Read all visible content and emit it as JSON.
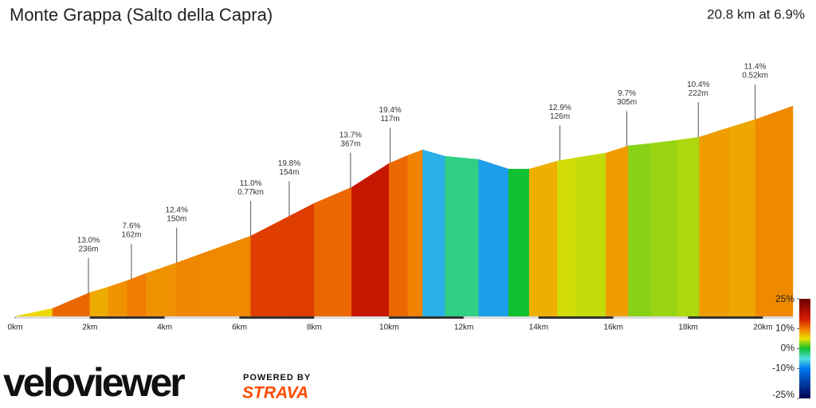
{
  "chart_data": {
    "type": "gradient_profile",
    "title": "Monte Grappa (Salto della Capra)",
    "summary": "20.8 km at 6.9%",
    "x_edges": [
      0,
      1,
      2,
      2.5,
      3,
      3.5,
      4.3,
      5,
      6.3,
      7.3,
      8.0,
      8.5,
      9.0,
      10.0,
      10.5,
      10.9,
      11.5,
      12.4,
      13.2,
      13.75,
      14.5,
      15.0,
      15.8,
      16.4,
      17.0,
      17.7,
      18.3,
      19.1,
      19.8,
      20.8
    ],
    "grades": [
      5.4,
      10.9,
      7.6,
      8.7,
      9.8,
      8.8,
      9.3,
      9.2,
      13.1,
      13.2,
      10.9,
      10.9,
      16.3,
      10.9,
      9.5,
      -7.3,
      -2.4,
      -8.2,
      0,
      7.3,
      4.4,
      4.1,
      8.2,
      2.7,
      3.1,
      3.6,
      8.2,
      7.8,
      9.2
    ],
    "xlim": [
      0,
      20.8
    ],
    "xticks": [
      {
        "value": 0,
        "label": "0km"
      },
      {
        "value": 2,
        "label": "2km"
      },
      {
        "value": 4,
        "label": "4km"
      },
      {
        "value": 6,
        "label": "6km"
      },
      {
        "value": 8,
        "label": "8km"
      },
      {
        "value": 10,
        "label": "10km"
      },
      {
        "value": 12,
        "label": "12km"
      },
      {
        "value": 14,
        "label": "14km"
      },
      {
        "value": 16,
        "label": "16km"
      },
      {
        "value": 18,
        "label": "18km"
      },
      {
        "value": 20,
        "label": "20km"
      }
    ],
    "annotations": [
      {
        "x": 1.96,
        "grade": "13.0%",
        "length": "236m"
      },
      {
        "x": 3.11,
        "grade": "7.6%",
        "length": "162m"
      },
      {
        "x": 4.32,
        "grade": "12.4%",
        "length": "150m"
      },
      {
        "x": 6.3,
        "grade": "11.0%",
        "length": "0.77km"
      },
      {
        "x": 7.33,
        "grade": "19.8%",
        "length": "154m"
      },
      {
        "x": 8.97,
        "grade": "13.7%",
        "length": "367m"
      },
      {
        "x": 10.03,
        "grade": "19.4%",
        "length": "117m"
      },
      {
        "x": 14.57,
        "grade": "12.9%",
        "length": "126m"
      },
      {
        "x": 16.36,
        "grade": "9.7%",
        "length": "305m"
      },
      {
        "x": 18.27,
        "grade": "10.4%",
        "length": "222m"
      },
      {
        "x": 19.79,
        "grade": "11.4%",
        "length": "0.52km"
      }
    ],
    "colorscale": [
      {
        "value": 25,
        "color": "#6b0000"
      },
      {
        "value": 15,
        "color": "#d41a00"
      },
      {
        "value": 10,
        "color": "#f07800"
      },
      {
        "value": 5,
        "color": "#ece000"
      },
      {
        "value": 0,
        "color": "#10c030"
      },
      {
        "value": -5,
        "color": "#50e0e0"
      },
      {
        "value": -10,
        "color": "#0078f0"
      },
      {
        "value": -25,
        "color": "#000050"
      }
    ],
    "colorbar_lim": [
      -25,
      25
    ],
    "colorbar_ticks": [
      {
        "value": 25,
        "label": "25%"
      },
      {
        "value": 10,
        "label": "10%"
      },
      {
        "value": 0,
        "label": "0%"
      },
      {
        "value": -10,
        "label": "-10%"
      },
      {
        "value": -25,
        "label": "-25%"
      }
    ]
  },
  "footer": {
    "logo": "veloviewer",
    "powered_by": "POWERED BY",
    "strava": "STRAVA"
  }
}
